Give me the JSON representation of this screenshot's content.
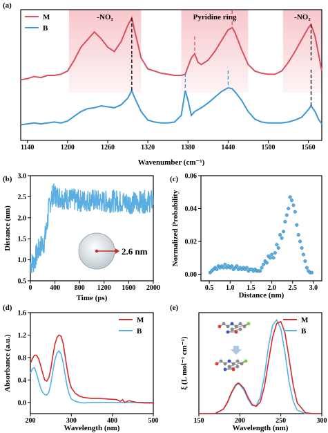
{
  "figure": {
    "panel_labels": {
      "a": "(a)",
      "b": "(b)",
      "c": "(c)",
      "d": "(d)",
      "e": "(e)"
    },
    "colors": {
      "M": "#d9505f",
      "B": "#3a97d3",
      "M_dark": "#d62a2a",
      "B_light": "#55b1e4",
      "scatter": "#5aaee2",
      "band": "#f7c7cc"
    }
  },
  "chart_data": [
    {
      "id": "a",
      "type": "line",
      "xlabel": "Wavenumber (cm⁻¹)",
      "ylabel": "",
      "xlim": [
        1130,
        1580
      ],
      "xticks": [
        1140,
        1200,
        1260,
        1320,
        1380,
        1440,
        1500,
        1560
      ],
      "tick_labels": [
        "1140",
        "1200",
        "1260",
        "1320",
        "1380",
        "1440",
        "1500",
        "1560"
      ],
      "legend": [
        "M",
        "B"
      ],
      "legend_position": "top-left",
      "annotations": [
        {
          "text": "-NO₂",
          "band": [
            1202,
            1310
          ]
        },
        {
          "text": "Pyridine ring",
          "band": [
            1370,
            1470
          ]
        },
        {
          "text": "-NO₂",
          "band": [
            1522,
            1580
          ]
        }
      ],
      "marker_lines": [
        {
          "series": "M",
          "x": 1296,
          "style": "dashed-black"
        },
        {
          "series": "M",
          "x": 1390,
          "style": "dashed-color"
        },
        {
          "series": "M",
          "x": 1446,
          "style": "dashed-color"
        },
        {
          "series": "M",
          "x": 1564,
          "style": "dashed-black"
        },
        {
          "series": "B",
          "x": 1296,
          "style": "dashed-black"
        },
        {
          "series": "B",
          "x": 1376,
          "style": "dashed-color"
        },
        {
          "series": "B",
          "x": 1440,
          "style": "dashed-color"
        },
        {
          "series": "B",
          "x": 1564,
          "style": "dashed-black"
        }
      ],
      "series": [
        {
          "name": "M",
          "x": [
            1130,
            1140,
            1150,
            1160,
            1170,
            1180,
            1190,
            1200,
            1210,
            1220,
            1230,
            1240,
            1250,
            1260,
            1270,
            1280,
            1290,
            1296,
            1300,
            1310,
            1320,
            1330,
            1340,
            1350,
            1360,
            1370,
            1376,
            1380,
            1385,
            1390,
            1395,
            1400,
            1410,
            1420,
            1430,
            1440,
            1446,
            1450,
            1460,
            1470,
            1480,
            1490,
            1500,
            1510,
            1520,
            1530,
            1540,
            1550,
            1560,
            1564,
            1570,
            1575,
            1580
          ],
          "y": [
            0.58,
            0.59,
            0.61,
            0.6,
            0.62,
            0.62,
            0.63,
            0.66,
            0.76,
            0.88,
            0.95,
            1.02,
            0.96,
            0.88,
            0.84,
            0.93,
            1.08,
            1.15,
            1.04,
            0.78,
            0.68,
            0.66,
            0.64,
            0.63,
            0.62,
            0.62,
            0.63,
            0.7,
            0.78,
            0.82,
            0.74,
            0.72,
            0.76,
            0.84,
            0.94,
            1.04,
            1.06,
            1.02,
            0.86,
            0.72,
            0.66,
            0.64,
            0.63,
            0.63,
            0.66,
            0.74,
            0.84,
            0.95,
            1.06,
            1.09,
            0.98,
            0.82,
            0.66
          ]
        },
        {
          "name": "B",
          "x": [
            1130,
            1140,
            1150,
            1160,
            1170,
            1180,
            1190,
            1200,
            1210,
            1220,
            1230,
            1240,
            1250,
            1260,
            1270,
            1280,
            1290,
            1296,
            1300,
            1310,
            1320,
            1330,
            1340,
            1350,
            1360,
            1370,
            1376,
            1380,
            1385,
            1390,
            1400,
            1410,
            1420,
            1430,
            1440,
            1446,
            1450,
            1460,
            1470,
            1480,
            1490,
            1500,
            1510,
            1520,
            1530,
            1540,
            1550,
            1560,
            1564,
            1570,
            1575,
            1580
          ],
          "y": [
            0.04,
            0.05,
            0.06,
            0.05,
            0.06,
            0.07,
            0.06,
            0.08,
            0.13,
            0.18,
            0.21,
            0.22,
            0.24,
            0.23,
            0.22,
            0.25,
            0.32,
            0.4,
            0.33,
            0.18,
            0.09,
            0.07,
            0.06,
            0.06,
            0.07,
            0.14,
            0.4,
            0.3,
            0.14,
            0.18,
            0.22,
            0.27,
            0.33,
            0.39,
            0.43,
            0.42,
            0.39,
            0.3,
            0.18,
            0.1,
            0.07,
            0.06,
            0.06,
            0.06,
            0.07,
            0.09,
            0.12,
            0.2,
            0.24,
            0.18,
            0.1,
            0.05
          ]
        }
      ]
    },
    {
      "id": "b",
      "type": "scatter",
      "xlabel": "Time (ps)",
      "ylabel": "Distance (nm)",
      "xlim": [
        0,
        2000
      ],
      "ylim": [
        0.5,
        3.0
      ],
      "xticks": [
        0,
        400,
        800,
        1200,
        1600,
        2000
      ],
      "tick_labels_x": [
        "0",
        "400",
        "800",
        "1200",
        "1600",
        "2000"
      ],
      "yticks": [
        0.5,
        1.0,
        1.5,
        2.0,
        2.5,
        3.0
      ],
      "tick_labels_y": [
        "0.5",
        "1.0",
        "1.5",
        "2.0",
        "2.5",
        "3.0"
      ],
      "inset_label": "2.6 nm",
      "trend": {
        "x": [
          0,
          60,
          120,
          180,
          220,
          260,
          300,
          340,
          380,
          450,
          600,
          800,
          1000,
          1200,
          1400,
          1600,
          1800,
          2000
        ],
        "y": [
          0.9,
          0.95,
          1.2,
          1.35,
          1.4,
          1.7,
          2.2,
          2.5,
          2.55,
          2.5,
          2.45,
          2.4,
          2.42,
          2.38,
          2.4,
          2.35,
          2.38,
          2.4
        ]
      }
    },
    {
      "id": "c",
      "type": "scatter",
      "xlabel": "Distance (nm)",
      "ylabel": "Normalized Probability",
      "xlim": [
        0.3,
        3.2
      ],
      "ylim": [
        -0.004,
        0.06
      ],
      "xticks": [
        0.5,
        1.0,
        1.5,
        2.0,
        2.5,
        3.0
      ],
      "tick_labels_x": [
        "0.5",
        "1.0",
        "1.5",
        "2.0",
        "2.5",
        "3.0"
      ],
      "yticks": [
        0.0,
        0.02,
        0.04,
        0.06
      ],
      "tick_labels_y": [
        "0.00",
        "0.02",
        "0.04",
        "0.06"
      ],
      "x": [
        0.52,
        0.56,
        0.6,
        0.64,
        0.68,
        0.72,
        0.76,
        0.8,
        0.84,
        0.88,
        0.92,
        0.96,
        1.0,
        1.04,
        1.08,
        1.12,
        1.16,
        1.2,
        1.24,
        1.28,
        1.32,
        1.36,
        1.4,
        1.44,
        1.48,
        1.52,
        1.56,
        1.6,
        1.64,
        1.68,
        1.72,
        1.76,
        1.8,
        1.84,
        1.88,
        1.92,
        1.96,
        2.0,
        2.04,
        2.08,
        2.12,
        2.16,
        2.2,
        2.24,
        2.28,
        2.32,
        2.36,
        2.4,
        2.44,
        2.48,
        2.52,
        2.56,
        2.6,
        2.64,
        2.68,
        2.72,
        2.76,
        2.8,
        2.84,
        2.88,
        2.92,
        2.96
      ],
      "y": [
        0.001,
        0.002,
        0.003,
        0.004,
        0.003,
        0.005,
        0.004,
        0.005,
        0.004,
        0.006,
        0.004,
        0.005,
        0.004,
        0.005,
        0.003,
        0.004,
        0.005,
        0.003,
        0.004,
        0.003,
        0.004,
        0.003,
        0.004,
        0.002,
        0.003,
        0.003,
        0.002,
        0.003,
        0.002,
        0.002,
        0.002,
        0.004,
        0.006,
        0.008,
        0.007,
        0.011,
        0.01,
        0.012,
        0.01,
        0.013,
        0.018,
        0.016,
        0.024,
        0.022,
        0.026,
        0.032,
        0.036,
        0.04,
        0.047,
        0.045,
        0.042,
        0.038,
        0.03,
        0.024,
        0.02,
        0.016,
        0.012,
        0.008,
        0.004,
        0.002,
        0.001,
        0.001
      ]
    },
    {
      "id": "d",
      "type": "line",
      "xlabel": "Wavelength (nm)",
      "ylabel": "Absorbance (a.u.)",
      "xlim": [
        200,
        500
      ],
      "ylim": [
        -0.2,
        1.6
      ],
      "xticks": [
        200,
        300,
        400,
        500
      ],
      "tick_labels_x": [
        "200",
        "300",
        "400",
        "500"
      ],
      "yticks": [
        0.0,
        0.4,
        0.8,
        1.2,
        1.6
      ],
      "tick_labels_y": [
        "0.0",
        "0.4",
        "0.8",
        "1.2",
        "1.6"
      ],
      "legend": [
        "M",
        "B"
      ],
      "legend_position": "top-right",
      "series": [
        {
          "name": "M",
          "x": [
            200,
            205,
            210,
            215,
            220,
            225,
            230,
            235,
            240,
            245,
            250,
            255,
            260,
            265,
            270,
            275,
            280,
            285,
            290,
            295,
            300,
            310,
            320,
            330,
            340,
            350,
            370,
            390,
            410,
            420,
            425,
            430,
            440,
            460,
            480,
            500
          ],
          "y": [
            0.7,
            0.78,
            0.84,
            0.84,
            0.78,
            0.66,
            0.52,
            0.4,
            0.38,
            0.44,
            0.6,
            0.84,
            1.04,
            1.16,
            1.2,
            1.18,
            1.05,
            0.82,
            0.58,
            0.38,
            0.26,
            0.16,
            0.11,
            0.09,
            0.08,
            0.07,
            0.07,
            0.06,
            0.05,
            0.02,
            0.05,
            0.0,
            0.03,
            0.0,
            -0.01,
            -0.01
          ]
        },
        {
          "name": "B",
          "x": [
            200,
            205,
            210,
            215,
            220,
            225,
            230,
            235,
            240,
            245,
            250,
            255,
            260,
            265,
            270,
            275,
            280,
            285,
            290,
            295,
            300,
            310,
            320,
            330,
            350,
            400,
            450,
            500
          ],
          "y": [
            0.52,
            0.6,
            0.62,
            0.52,
            0.38,
            0.26,
            0.18,
            0.14,
            0.13,
            0.18,
            0.34,
            0.56,
            0.76,
            0.88,
            0.92,
            0.86,
            0.7,
            0.48,
            0.28,
            0.14,
            0.06,
            0.02,
            0.0,
            -0.01,
            0.0,
            0.0,
            0.0,
            0.0
          ]
        }
      ]
    },
    {
      "id": "e",
      "type": "line",
      "xlabel": "Wavelength (nm)",
      "ylabel": "ξ (L mol⁻¹ cm⁻¹)",
      "xlim": [
        150,
        300
      ],
      "xticks": [
        150,
        200,
        250,
        300
      ],
      "tick_labels_x": [
        "150",
        "200",
        "250",
        "300"
      ],
      "legend": [
        "M",
        "B"
      ],
      "legend_position": "top-right",
      "series": [
        {
          "name": "M",
          "x": [
            150,
            160,
            170,
            180,
            185,
            190,
            195,
            198,
            200,
            205,
            210,
            215,
            220,
            225,
            230,
            235,
            240,
            245,
            250,
            255,
            260,
            265,
            270,
            280,
            290,
            300
          ],
          "y": [
            0,
            0,
            0.002,
            0.05,
            0.13,
            0.24,
            0.32,
            0.34,
            0.33,
            0.28,
            0.18,
            0.1,
            0.08,
            0.13,
            0.3,
            0.58,
            0.85,
            1.0,
            1.02,
            0.9,
            0.62,
            0.32,
            0.12,
            0.01,
            0,
            0
          ]
        },
        {
          "name": "B",
          "x": [
            150,
            160,
            170,
            180,
            185,
            190,
            195,
            198,
            200,
            205,
            210,
            215,
            220,
            225,
            230,
            235,
            240,
            245,
            250,
            255,
            260,
            265,
            270,
            280,
            290,
            300
          ],
          "y": [
            0,
            0,
            0.002,
            0.05,
            0.12,
            0.23,
            0.31,
            0.33,
            0.32,
            0.26,
            0.16,
            0.09,
            0.09,
            0.18,
            0.42,
            0.75,
            0.98,
            1.04,
            0.94,
            0.68,
            0.36,
            0.14,
            0.04,
            0,
            0,
            0
          ]
        }
      ]
    }
  ]
}
